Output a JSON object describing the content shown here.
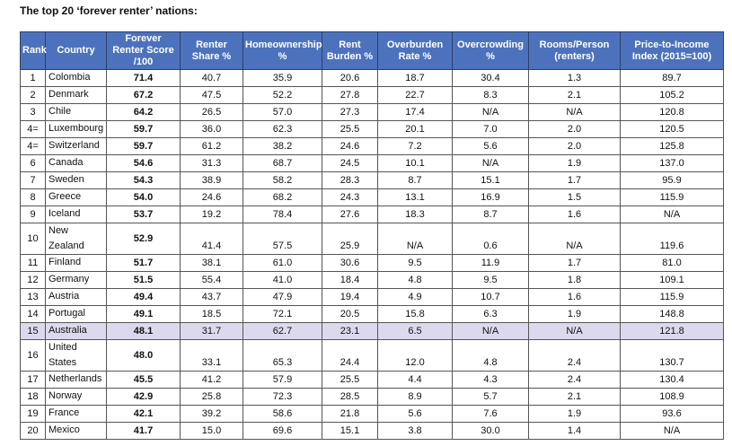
{
  "title": "The top 20 ‘forever renter’ nations:",
  "table": {
    "headers": [
      "Rank",
      "Country",
      "Forever Renter Score /100",
      "Renter Share %",
      "Homeownership %",
      "Rent Burden %",
      "Overburden Rate %",
      "Overcrowding %",
      "Rooms/Person (renters)",
      "Price-to-Income Index (2015=100)"
    ],
    "rows": [
      [
        "1",
        "Colombia",
        "71.4",
        "40.7",
        "35.9",
        "20.6",
        "18.7",
        "30.4",
        "1.3",
        "89.7"
      ],
      [
        "2",
        "Denmark",
        "67.2",
        "47.5",
        "52.2",
        "27.8",
        "22.7",
        "8.3",
        "2.1",
        "105.2"
      ],
      [
        "3",
        "Chile",
        "64.2",
        "26.5",
        "57.0",
        "27.3",
        "17.4",
        "N/A",
        "N/A",
        "120.8"
      ],
      [
        "4=",
        "Luxembourg",
        "59.7",
        "36.0",
        "62.3",
        "25.5",
        "20.1",
        "7.0",
        "2.0",
        "120.5"
      ],
      [
        "4=",
        "Switzerland",
        "59.7",
        "61.2",
        "38.2",
        "24.6",
        "7.2",
        "5.6",
        "2.0",
        "125.8"
      ],
      [
        "6",
        "Canada",
        "54.6",
        "31.3",
        "68.7",
        "24.5",
        "10.1",
        "N/A",
        "1.9",
        "137.0"
      ],
      [
        "7",
        "Sweden",
        "54.3",
        "38.9",
        "58.2",
        "28.3",
        "8.7",
        "15.1",
        "1.7",
        "95.9"
      ],
      [
        "8",
        "Greece",
        "54.0",
        "24.6",
        "68.2",
        "24.3",
        "13.1",
        "16.9",
        "1.5",
        "115.9"
      ],
      [
        "9",
        "Iceland",
        "53.7",
        "19.2",
        "78.4",
        "27.6",
        "18.3",
        "8.7",
        "1.6",
        "N/A"
      ],
      [
        "10",
        "New Zealand",
        "52.9",
        "41.4",
        "57.5",
        "25.9",
        "N/A",
        "0.6",
        "N/A",
        "119.6"
      ],
      [
        "11",
        "Finland",
        "51.7",
        "38.1",
        "61.0",
        "30.6",
        "9.5",
        "11.9",
        "1.7",
        "81.0"
      ],
      [
        "12",
        "Germany",
        "51.5",
        "55.4",
        "41.0",
        "18.4",
        "4.8",
        "9.5",
        "1.8",
        "109.1"
      ],
      [
        "13",
        "Austria",
        "49.4",
        "43.7",
        "47.9",
        "19.4",
        "4.9",
        "10.7",
        "1.6",
        "115.9"
      ],
      [
        "14",
        "Portugal",
        "49.1",
        "18.5",
        "72.1",
        "20.5",
        "15.8",
        "6.3",
        "1.9",
        "148.8"
      ],
      [
        "15",
        "Australia",
        "48.1",
        "31.7",
        "62.7",
        "23.1",
        "6.5",
        "N/A",
        "N/A",
        "121.8"
      ],
      [
        "16",
        "United States",
        "48.0",
        "33.1",
        "65.3",
        "24.4",
        "12.0",
        "4.8",
        "2.4",
        "130.7"
      ],
      [
        "17",
        "Netherlands",
        "45.5",
        "41.2",
        "57.9",
        "25.5",
        "4.4",
        "4.3",
        "2.4",
        "130.4"
      ],
      [
        "18",
        "Norway",
        "42.9",
        "25.8",
        "72.3",
        "28.5",
        "8.9",
        "5.7",
        "2.1",
        "108.9"
      ],
      [
        "19",
        "France",
        "42.1",
        "39.2",
        "58.6",
        "21.8",
        "5.6",
        "7.6",
        "1.9",
        "93.6"
      ],
      [
        "20",
        "Mexico",
        "41.7",
        "15.0",
        "69.6",
        "15.1",
        "3.8",
        "30.0",
        "1.4",
        "N/A"
      ]
    ]
  }
}
